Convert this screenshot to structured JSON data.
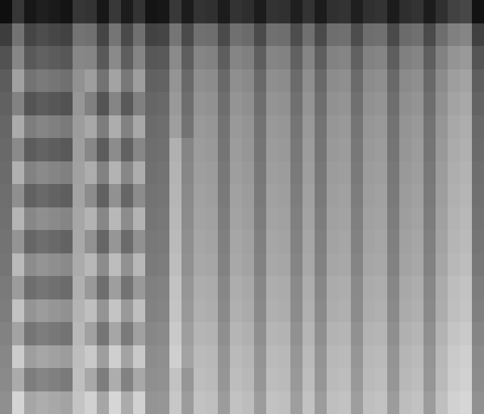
{
  "chart_data": {
    "type": "heatmap",
    "color": "gray",
    "tick_labels": false,
    "zlim": [
      0,
      100
    ],
    "cells": [
      [
        6,
        21,
        9,
        12,
        10,
        8,
        21,
        20,
        9,
        22,
        11,
        20,
        8,
        9,
        22,
        11,
        20,
        19,
        11,
        20,
        18,
        11,
        20,
        19,
        12,
        20,
        11,
        19,
        20,
        12,
        19,
        20,
        11,
        18,
        20,
        11,
        19,
        26,
        28,
        7
      ],
      [
        24,
        45,
        27,
        30,
        28,
        26,
        45,
        44,
        27,
        46,
        29,
        44,
        26,
        27,
        46,
        29,
        44,
        43,
        29,
        44,
        42,
        29,
        44,
        43,
        30,
        44,
        29,
        43,
        44,
        30,
        43,
        44,
        29,
        42,
        44,
        29,
        43,
        50,
        52,
        25
      ],
      [
        32,
        53,
        35,
        38,
        36,
        34,
        53,
        52,
        35,
        54,
        37,
        52,
        34,
        35,
        54,
        37,
        52,
        51,
        37,
        52,
        50,
        37,
        52,
        51,
        38,
        52,
        37,
        51,
        52,
        38,
        51,
        52,
        37,
        50,
        52,
        37,
        51,
        58,
        60,
        33
      ],
      [
        36,
        63,
        45,
        48,
        46,
        44,
        57,
        62,
        45,
        64,
        47,
        62,
        38,
        39,
        58,
        41,
        56,
        55,
        41,
        56,
        54,
        41,
        56,
        55,
        42,
        56,
        41,
        55,
        56,
        42,
        55,
        56,
        41,
        54,
        56,
        41,
        55,
        62,
        64,
        37
      ],
      [
        38,
        51,
        33,
        36,
        34,
        32,
        59,
        50,
        33,
        52,
        35,
        50,
        40,
        41,
        60,
        43,
        58,
        57,
        43,
        58,
        56,
        43,
        58,
        57,
        44,
        58,
        43,
        57,
        58,
        44,
        57,
        58,
        43,
        56,
        58,
        43,
        57,
        64,
        66,
        39
      ],
      [
        40,
        67,
        49,
        52,
        50,
        48,
        61,
        66,
        49,
        68,
        51,
        66,
        42,
        43,
        62,
        45,
        60,
        59,
        45,
        60,
        58,
        45,
        60,
        59,
        46,
        60,
        45,
        59,
        60,
        46,
        59,
        60,
        45,
        58,
        60,
        45,
        59,
        66,
        68,
        41
      ],
      [
        41,
        54,
        36,
        39,
        37,
        35,
        62,
        53,
        36,
        55,
        38,
        53,
        43,
        44,
        69,
        52,
        61,
        60,
        46,
        61,
        59,
        46,
        61,
        60,
        47,
        61,
        46,
        60,
        61,
        47,
        60,
        61,
        46,
        59,
        61,
        46,
        60,
        67,
        69,
        42
      ],
      [
        42,
        69,
        51,
        54,
        52,
        50,
        63,
        68,
        51,
        70,
        53,
        68,
        44,
        45,
        70,
        53,
        62,
        61,
        47,
        62,
        60,
        47,
        62,
        61,
        48,
        62,
        47,
        61,
        62,
        48,
        61,
        62,
        47,
        60,
        62,
        47,
        61,
        68,
        70,
        43
      ],
      [
        43,
        56,
        38,
        41,
        39,
        37,
        64,
        55,
        38,
        57,
        40,
        55,
        45,
        46,
        71,
        54,
        63,
        62,
        48,
        63,
        61,
        48,
        63,
        62,
        49,
        63,
        48,
        62,
        63,
        49,
        62,
        63,
        48,
        61,
        63,
        48,
        62,
        69,
        71,
        44
      ],
      [
        44,
        71,
        53,
        56,
        54,
        52,
        65,
        70,
        53,
        72,
        55,
        70,
        46,
        47,
        72,
        55,
        64,
        63,
        49,
        64,
        62,
        49,
        64,
        63,
        50,
        64,
        49,
        63,
        64,
        50,
        63,
        64,
        49,
        62,
        64,
        49,
        63,
        70,
        72,
        45
      ],
      [
        45,
        58,
        40,
        43,
        41,
        39,
        66,
        57,
        40,
        59,
        42,
        57,
        47,
        48,
        73,
        56,
        65,
        64,
        50,
        65,
        63,
        50,
        65,
        64,
        51,
        65,
        50,
        64,
        65,
        51,
        64,
        65,
        50,
        63,
        65,
        50,
        64,
        71,
        73,
        46
      ],
      [
        46,
        73,
        55,
        58,
        56,
        54,
        67,
        72,
        55,
        74,
        57,
        72,
        48,
        49,
        74,
        57,
        66,
        65,
        51,
        66,
        64,
        51,
        66,
        65,
        52,
        66,
        51,
        65,
        66,
        52,
        65,
        66,
        51,
        64,
        66,
        51,
        65,
        72,
        74,
        47
      ],
      [
        48,
        61,
        43,
        46,
        44,
        42,
        69,
        60,
        43,
        62,
        45,
        60,
        50,
        51,
        76,
        59,
        68,
        67,
        53,
        68,
        66,
        53,
        68,
        67,
        54,
        68,
        53,
        67,
        68,
        54,
        67,
        68,
        53,
        66,
        68,
        53,
        67,
        74,
        76,
        49
      ],
      [
        49,
        76,
        58,
        61,
        59,
        57,
        70,
        75,
        58,
        77,
        60,
        75,
        51,
        52,
        77,
        60,
        69,
        68,
        54,
        69,
        67,
        54,
        69,
        68,
        55,
        69,
        54,
        68,
        69,
        55,
        68,
        69,
        54,
        67,
        69,
        54,
        68,
        75,
        77,
        50
      ],
      [
        51,
        64,
        46,
        49,
        47,
        45,
        72,
        63,
        46,
        65,
        48,
        63,
        53,
        54,
        79,
        62,
        71,
        70,
        56,
        71,
        69,
        56,
        71,
        70,
        57,
        71,
        56,
        70,
        71,
        57,
        70,
        71,
        56,
        69,
        71,
        56,
        70,
        77,
        79,
        52
      ],
      [
        53,
        80,
        62,
        65,
        63,
        61,
        74,
        79,
        62,
        81,
        64,
        79,
        55,
        56,
        81,
        64,
        73,
        72,
        58,
        73,
        71,
        58,
        73,
        72,
        59,
        73,
        58,
        72,
        73,
        59,
        72,
        73,
        58,
        71,
        73,
        58,
        72,
        79,
        81,
        54
      ],
      [
        54,
        67,
        49,
        52,
        50,
        48,
        75,
        66,
        49,
        68,
        51,
        66,
        56,
        57,
        76,
        59,
        74,
        73,
        59,
        74,
        72,
        59,
        74,
        73,
        60,
        74,
        59,
        73,
        74,
        60,
        73,
        74,
        59,
        72,
        74,
        59,
        73,
        80,
        82,
        55
      ],
      [
        56,
        83,
        65,
        68,
        66,
        64,
        77,
        82,
        65,
        84,
        67,
        82,
        58,
        59,
        78,
        61,
        76,
        75,
        61,
        76,
        74,
        61,
        76,
        75,
        62,
        76,
        61,
        75,
        76,
        62,
        75,
        76,
        61,
        74,
        76,
        61,
        75,
        82,
        84,
        57
      ]
    ]
  }
}
